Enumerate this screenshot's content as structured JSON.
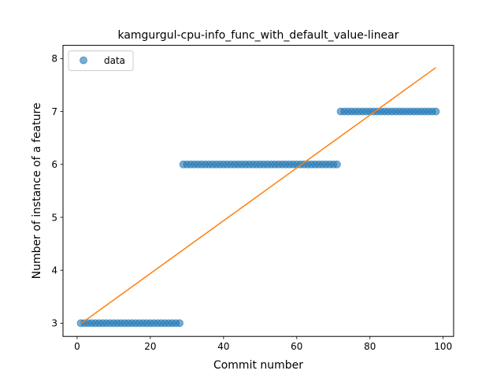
{
  "chart_data": {
    "type": "scatter",
    "title": "kamgurgul-cpu-info_func_with_default_value-linear",
    "xlabel": "Commit number",
    "ylabel": "Number of instance of a feature",
    "xlim": [
      -3.85,
      102.85
    ],
    "ylim": [
      2.75,
      8.25
    ],
    "xticks": [
      0,
      20,
      40,
      60,
      80,
      100
    ],
    "yticks": [
      3,
      4,
      5,
      6,
      7,
      8
    ],
    "legend": {
      "position": "top-left",
      "entries": [
        "data"
      ]
    },
    "grid": false,
    "series": [
      {
        "name": "data",
        "kind": "scatter",
        "color": "#1f77b4",
        "segments": [
          {
            "x_start": 1,
            "x_end": 28,
            "y": 3
          },
          {
            "x_start": 29,
            "x_end": 71,
            "y": 6
          },
          {
            "x_start": 72,
            "x_end": 98,
            "y": 7
          }
        ]
      },
      {
        "kind": "line",
        "color": "#ff7f0e",
        "x": [
          1,
          98
        ],
        "y": [
          2.99,
          7.83
        ]
      }
    ]
  }
}
